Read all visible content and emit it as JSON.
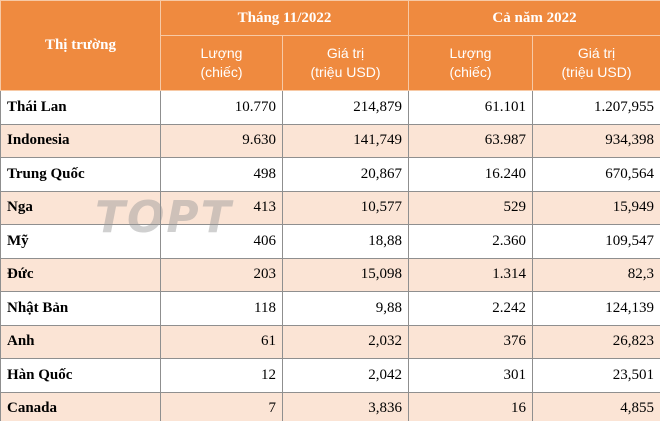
{
  "table": {
    "header": {
      "market": "Thị trường",
      "period1": "Tháng 11/2022",
      "period2": "Cả năm 2022",
      "sub": [
        "Lượng\n(chiếc)",
        "Giá trị\n(triệu USD)",
        "Lượng\n(chiếc)",
        "Giá trị\n(triệu USD)"
      ]
    },
    "rows": [
      [
        "Thái Lan",
        "10.770",
        "214,879",
        "61.101",
        "1.207,955"
      ],
      [
        "Indonesia",
        "9.630",
        "141,749",
        "63.987",
        "934,398"
      ],
      [
        "Trung Quốc",
        "498",
        "20,867",
        "16.240",
        "670,564"
      ],
      [
        "Nga",
        "413",
        "10,577",
        "529",
        "15,949"
      ],
      [
        "Mỹ",
        "406",
        "18,88",
        "2.360",
        "109,547"
      ],
      [
        "Đức",
        "203",
        "15,098",
        "1.314",
        "82,3"
      ],
      [
        "Nhật Bản",
        "118",
        "9,88",
        "2.242",
        "124,139"
      ],
      [
        "Anh",
        "61",
        "2,032",
        "376",
        "26,823"
      ],
      [
        "Hàn Quốc",
        "12",
        "2,042",
        "301",
        "23,501"
      ],
      [
        "Canada",
        "7",
        "3,836",
        "16",
        "4,855"
      ]
    ]
  },
  "watermark": "TOPT"
}
